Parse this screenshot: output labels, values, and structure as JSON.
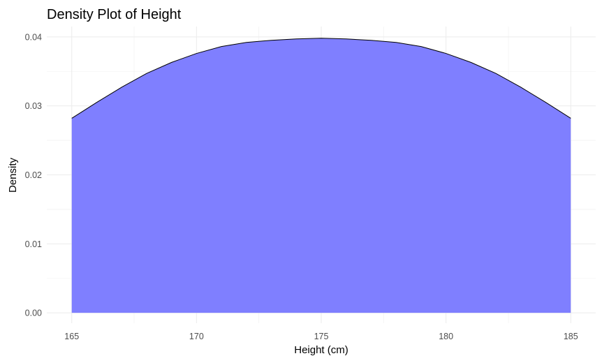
{
  "chart_data": {
    "type": "area",
    "title": "Density Plot of Height",
    "xlabel": "Height (cm)",
    "ylabel": "Density",
    "xlim": [
      164,
      186
    ],
    "ylim": [
      -0.0015,
      0.0415
    ],
    "x_ticks": [
      165,
      170,
      175,
      180,
      185
    ],
    "x_tick_labels": [
      "165",
      "170",
      "175",
      "180",
      "185"
    ],
    "y_ticks": [
      0.0,
      0.01,
      0.02,
      0.03,
      0.04
    ],
    "y_tick_labels": [
      "0.00",
      "0.01",
      "0.02",
      "0.03",
      "0.04"
    ],
    "x_minor_ticks": [
      167.5,
      172.5,
      177.5,
      182.5
    ],
    "y_minor_ticks": [
      0.005,
      0.015,
      0.025,
      0.035
    ],
    "grid": true,
    "legend": "none",
    "fill_color": "#7f7fff",
    "line_color": "#000000",
    "series": [
      {
        "x": [
          165,
          166,
          167,
          168,
          169,
          170,
          171,
          172,
          173,
          174,
          175,
          176,
          177,
          178,
          179,
          180,
          181,
          182,
          183,
          184,
          185
        ],
        "y": [
          0.0282,
          0.0305,
          0.0327,
          0.0347,
          0.0363,
          0.0376,
          0.0386,
          0.0392,
          0.0395,
          0.0397,
          0.0398,
          0.0397,
          0.0395,
          0.0392,
          0.0386,
          0.0376,
          0.0363,
          0.0347,
          0.0327,
          0.0305,
          0.0282
        ]
      }
    ]
  }
}
